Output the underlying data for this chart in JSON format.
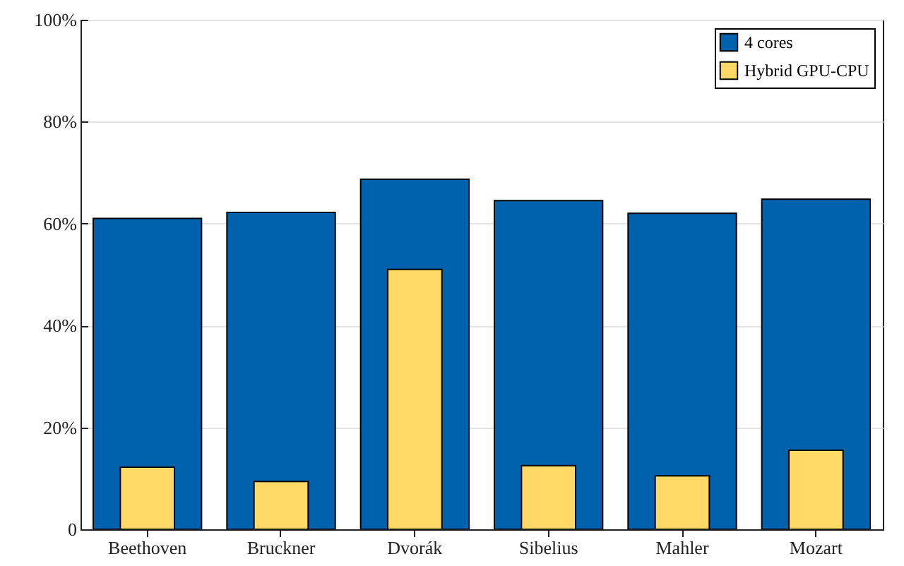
{
  "chart_data": {
    "type": "bar",
    "categories": [
      "Beethoven",
      "Bruckner",
      "Dvorák",
      "Sibelius",
      "Mahler",
      "Mozart"
    ],
    "series": [
      {
        "name": "4 cores",
        "color": "#0062ad",
        "values": [
          61,
          62.2,
          68.7,
          64.5,
          62,
          64.8
        ]
      },
      {
        "name": "Hybrid GPU-CPU",
        "color": "#fed966",
        "values": [
          12.2,
          9.4,
          51,
          12.5,
          10.5,
          15.5
        ]
      }
    ],
    "ylim": [
      0,
      100
    ],
    "yticks": [
      0,
      {
        "value": 20,
        "label": "20%"
      },
      {
        "value": 40,
        "label": "40%"
      },
      {
        "value": 60,
        "label": "60%"
      },
      {
        "value": 80,
        "label": "80%"
      },
      {
        "value": 100,
        "label": "100%"
      }
    ],
    "grid": "y",
    "legend": "top right"
  }
}
